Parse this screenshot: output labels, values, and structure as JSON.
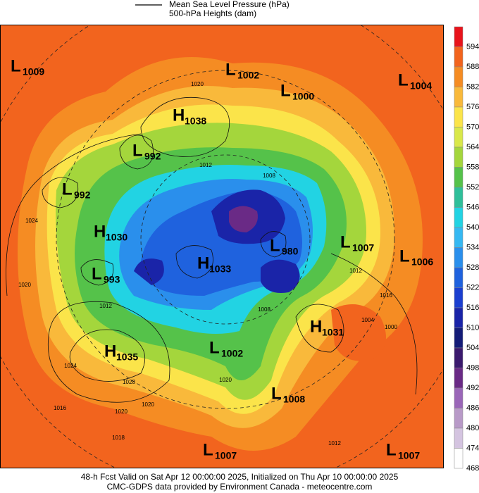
{
  "legend": {
    "items": [
      "Mean Sea Level Pressure (hPa)",
      "500-hPa Heights (dam)"
    ]
  },
  "colorbar": {
    "labels": [
      "594",
      "588",
      "582",
      "576",
      "570",
      "564",
      "558",
      "552",
      "546",
      "540",
      "534",
      "528",
      "522",
      "516",
      "510",
      "504",
      "498",
      "492",
      "486",
      "480",
      "474",
      "468"
    ],
    "colors": [
      "#e8141c",
      "#f2641e",
      "#f58c23",
      "#f9b93b",
      "#fbe44a",
      "#d9e84a",
      "#a4d63c",
      "#55c24a",
      "#2fbf9a",
      "#22d3e3",
      "#35b8f2",
      "#2a8fec",
      "#1f62de",
      "#1b3fd0",
      "#1a24a8",
      "#141c78",
      "#3b1a6e",
      "#6a2a86",
      "#9a66b8",
      "#b89ac8",
      "#d4c4e0",
      "#ffffff"
    ]
  },
  "centers": [
    {
      "letter": "L",
      "value": "1009"
    },
    {
      "letter": "L",
      "value": "1002"
    },
    {
      "letter": "L",
      "value": "1000"
    },
    {
      "letter": "L",
      "value": "1004"
    },
    {
      "letter": "H",
      "value": "1038"
    },
    {
      "letter": "L",
      "value": "992"
    },
    {
      "letter": "L",
      "value": "992"
    },
    {
      "letter": "H",
      "value": "1030"
    },
    {
      "letter": "L",
      "value": "980"
    },
    {
      "letter": "L",
      "value": "1007"
    },
    {
      "letter": "L",
      "value": "1006"
    },
    {
      "letter": "H",
      "value": "1033"
    },
    {
      "letter": "L",
      "value": "993"
    },
    {
      "letter": "H",
      "value": "1031"
    },
    {
      "letter": "H",
      "value": "1035"
    },
    {
      "letter": "L",
      "value": "1002"
    },
    {
      "letter": "L",
      "value": "1008"
    },
    {
      "letter": "L",
      "value": "1007"
    },
    {
      "letter": "L",
      "value": "1007"
    }
  ],
  "isobar_labels": [
    "1020",
    "1012",
    "1008",
    "1024",
    "1020",
    "1012",
    "1016",
    "1012",
    "1004",
    "1000",
    "1024",
    "1028",
    "1016",
    "1020",
    "1020",
    "1018",
    "1008",
    "1020",
    "1012"
  ],
  "footer": [
    "48-h Fcst Valid on Sat Apr 12 00:00:00 2025, Initialized on Thu Apr 10 00:00:00 2025",
    "CMC-GDPS data provided by Environment Canada - meteocentre.com"
  ]
}
